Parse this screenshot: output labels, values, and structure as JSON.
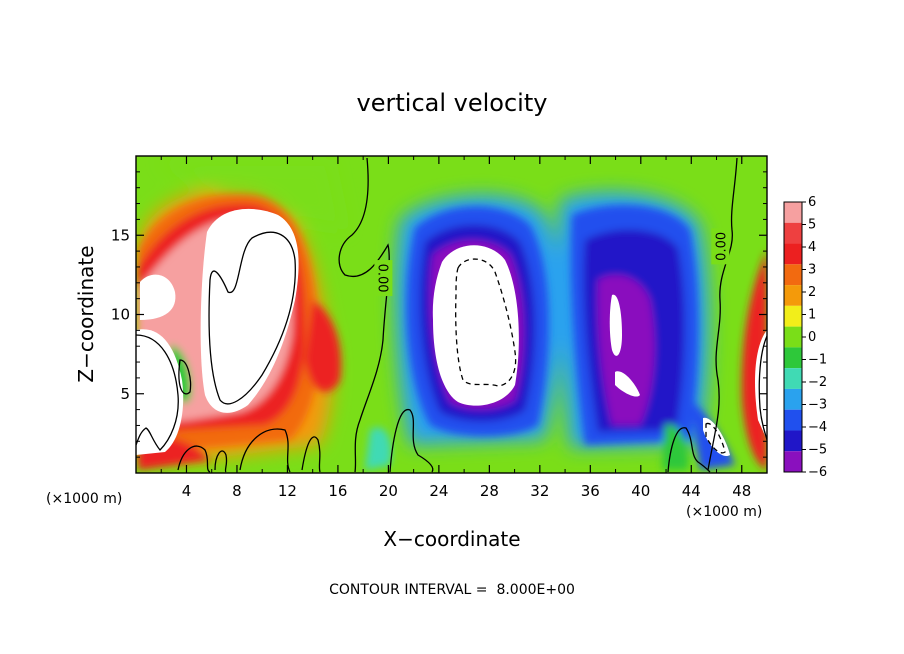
{
  "chart_data": {
    "type": "heatmap",
    "title": "vertical velocity",
    "xlabel": "X−coordinate",
    "ylabel": "Z−coordinate",
    "x_unit": "(×1000 m)",
    "x_unit_right": "(×1000 m)",
    "xlim": [
      0,
      50
    ],
    "ylim": [
      0,
      20
    ],
    "x_ticks": [
      4,
      8,
      12,
      16,
      20,
      24,
      28,
      32,
      36,
      40,
      44,
      48
    ],
    "y_ticks": [
      5,
      10,
      15
    ],
    "colorbar": {
      "levels": [
        6,
        5,
        4,
        3,
        2,
        1,
        0,
        -1,
        -2,
        -3,
        -4,
        -5,
        -6
      ],
      "labels": [
        "6",
        "5",
        "4",
        "3",
        "2",
        "1",
        "0",
        "−1",
        "−2",
        "−3",
        "−4",
        "−5",
        "−6"
      ],
      "colors": [
        "#f6a0a0",
        "#ee4040",
        "#ec2020",
        "#f26a10",
        "#f49a0a",
        "#f2ee1a",
        "#7ade18",
        "#2ec83a",
        "#40dab4",
        "#2aa2ee",
        "#2050ee",
        "#2016c8",
        "#8a10be"
      ]
    },
    "contour_labels": [
      {
        "text": "0.00",
        "x": 19.6,
        "y": 12.3,
        "rotate": 90
      },
      {
        "text": "0.00",
        "x": 46.3,
        "y": 14.3,
        "rotate": -90
      }
    ],
    "features": [
      {
        "kind": "updraft",
        "x": [
          5,
          13
        ],
        "y": [
          4,
          17
        ],
        "peak": 10
      },
      {
        "kind": "downdraft",
        "x": [
          23,
          33
        ],
        "y": [
          3,
          14
        ],
        "peak": -10
      },
      {
        "kind": "downdraft",
        "x": [
          35,
          43
        ],
        "y": [
          3,
          15
        ],
        "peak": -7
      }
    ],
    "annotation": "CONTOUR INTERVAL =  8.000E+00",
    "grid": false,
    "legend": "right"
  }
}
